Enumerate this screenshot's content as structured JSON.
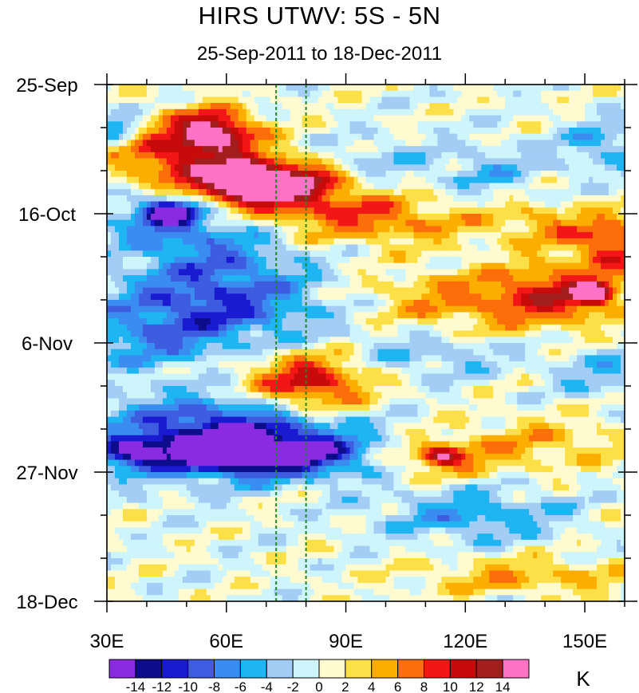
{
  "chart_data": {
    "type": "heatmap",
    "title": "HIRS UTWV: 5S - 5N",
    "subtitle": "25-Sep-2011 to 18-Dec-2011",
    "xlabel": "",
    "ylabel": "",
    "x_axis": {
      "range": [
        30,
        160
      ],
      "unit": "degrees longitude E",
      "tick_values": [
        30,
        60,
        90,
        120,
        150
      ],
      "tick_labels": [
        "30E",
        "60E",
        "90E",
        "120E",
        "150E"
      ]
    },
    "y_axis": {
      "range_days_since_start": [
        0,
        84
      ],
      "direction": "time increases downward",
      "tick_values": [
        0,
        21,
        42,
        63,
        84
      ],
      "tick_labels": [
        "25-Sep",
        "16-Oct",
        "6-Nov",
        "27-Nov",
        "18-Dec"
      ]
    },
    "reference_lines": [
      {
        "orientation": "vertical",
        "x": 72.5,
        "style": "dashed",
        "color": "#1f8a1f"
      },
      {
        "orientation": "vertical",
        "x": 80,
        "style": "dashed",
        "color": "#1f8a1f"
      }
    ],
    "colorbar": {
      "units": "K",
      "levels": [
        -14,
        -12,
        -10,
        -8,
        -6,
        -4,
        -2,
        0,
        2,
        4,
        6,
        8,
        10,
        12,
        14
      ],
      "level_labels": [
        "-14",
        "-12",
        "-10",
        "-8",
        "-6",
        "-4",
        "-2",
        "0",
        "2",
        "4",
        "6",
        "8",
        "10",
        "12",
        "14"
      ],
      "colors": [
        "#8a2be2",
        "#0d0d8c",
        "#1a1ad1",
        "#3d5ce0",
        "#3a8cf0",
        "#1fb4f2",
        "#a3cdf5",
        "#cdf5fb",
        "#fffad0",
        "#fde048",
        "#fcae00",
        "#fb6e0a",
        "#f21616",
        "#c70a0a",
        "#a31e1e",
        "#ff73c7"
      ]
    },
    "features": [
      {
        "lon": 57,
        "day": 7.5,
        "value": 11,
        "rx": 6,
        "ry": 2.2
      },
      {
        "lon": 52,
        "day": 9,
        "value": 7,
        "rx": 12,
        "ry": 3.5
      },
      {
        "lon": 70,
        "day": 16,
        "value": 13,
        "rx": 11,
        "ry": 2.2
      },
      {
        "lon": 68,
        "day": 16.5,
        "value": 9,
        "rx": 17,
        "ry": 3.5
      },
      {
        "lon": 45,
        "day": 12,
        "value": 4,
        "rx": 12,
        "ry": 3
      },
      {
        "lon": 92,
        "day": 21.5,
        "value": 5,
        "rx": 15,
        "ry": 3
      },
      {
        "lon": 110,
        "day": 22.5,
        "value": 3,
        "rx": 18,
        "ry": 2.5
      },
      {
        "lon": 142,
        "day": 23,
        "value": 5,
        "rx": 9,
        "ry": 2.5
      },
      {
        "lon": 157,
        "day": 26,
        "value": 9,
        "rx": 6,
        "ry": 3
      },
      {
        "lon": 120,
        "day": 35,
        "value": 6,
        "rx": 20,
        "ry": 3.5
      },
      {
        "lon": 145,
        "day": 34,
        "value": 8,
        "rx": 11,
        "ry": 3.5
      },
      {
        "lon": 152,
        "day": 34,
        "value": 12,
        "rx": 3,
        "ry": 1.2
      },
      {
        "lon": 82,
        "day": 49,
        "value": 8,
        "rx": 9,
        "ry": 3.5
      },
      {
        "lon": 75,
        "day": 48,
        "value": 5,
        "rx": 15,
        "ry": 3
      },
      {
        "lon": 110,
        "day": 60.5,
        "value": 6,
        "rx": 14,
        "ry": 2.5
      },
      {
        "lon": 114,
        "day": 60.5,
        "value": 10,
        "rx": 3.5,
        "ry": 1
      },
      {
        "lon": 140,
        "day": 58,
        "value": 4,
        "rx": 15,
        "ry": 3
      },
      {
        "lon": 135,
        "day": 80,
        "value": 5,
        "rx": 20,
        "ry": 2
      },
      {
        "lon": 46,
        "day": 20.5,
        "value": -13,
        "rx": 5,
        "ry": 1.6
      },
      {
        "lon": 45,
        "day": 22,
        "value": -6,
        "rx": 13,
        "ry": 3
      },
      {
        "lon": 58,
        "day": 28,
        "value": -6,
        "rx": 15,
        "ry": 4
      },
      {
        "lon": 57,
        "day": 36,
        "value": -9,
        "rx": 21,
        "ry": 4
      },
      {
        "lon": 42,
        "day": 42,
        "value": -5,
        "rx": 15,
        "ry": 3
      },
      {
        "lon": 62,
        "day": 58,
        "value": -10,
        "rx": 18,
        "ry": 3.5
      },
      {
        "lon": 68,
        "day": 60.5,
        "value": -13,
        "rx": 13,
        "ry": 1.8
      },
      {
        "lon": 55,
        "day": 56,
        "value": -6,
        "rx": 22,
        "ry": 6
      },
      {
        "lon": 36,
        "day": 60,
        "value": -10,
        "rx": 6,
        "ry": 1.6
      },
      {
        "lon": 92,
        "day": 60,
        "value": -5,
        "rx": 12,
        "ry": 3
      },
      {
        "lon": 122,
        "day": 70,
        "value": -6,
        "rx": 16,
        "ry": 3
      },
      {
        "lon": 125,
        "day": 14,
        "value": -4,
        "rx": 10,
        "ry": 3
      },
      {
        "lon": 95,
        "day": 13,
        "value": -4,
        "rx": 10,
        "ry": 3
      },
      {
        "lon": 155,
        "day": 10,
        "value": -5,
        "rx": 8,
        "ry": 3
      },
      {
        "lon": 112,
        "day": 44,
        "value": -4,
        "rx": 15,
        "ry": 2.5
      },
      {
        "lon": 155,
        "day": 47,
        "value": -4,
        "rx": 9,
        "ry": 3
      },
      {
        "lon": 33,
        "day": 7,
        "value": -7,
        "rx": 4,
        "ry": 2
      }
    ]
  }
}
